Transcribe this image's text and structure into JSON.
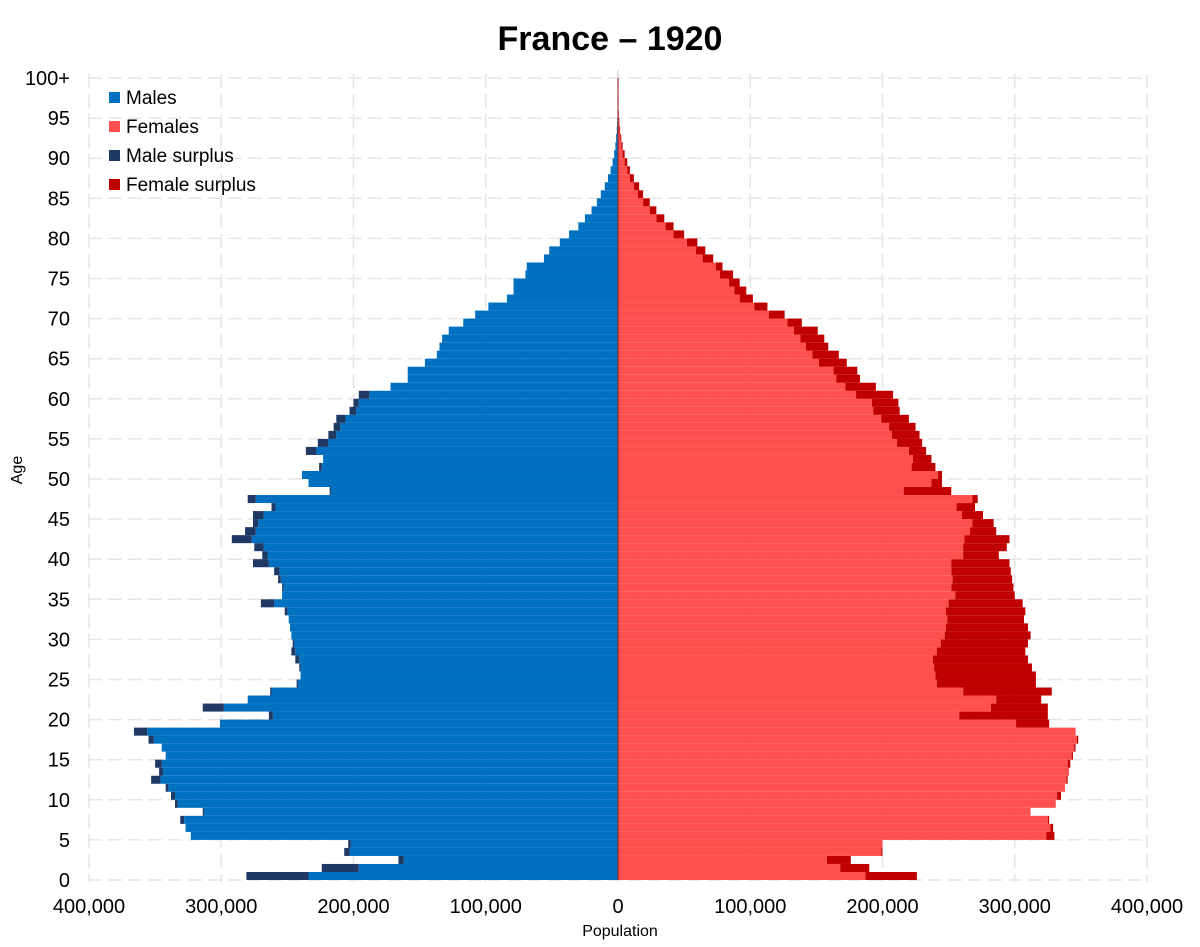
{
  "chart_data": {
    "type": "bar",
    "orientation": "horizontal",
    "subtype": "population-pyramid",
    "title": "France – 1920",
    "xlabel": "Population",
    "ylabel": "Age",
    "xlim": [
      -400000,
      400000
    ],
    "x_ticks": [
      -400000,
      -300000,
      -200000,
      -100000,
      0,
      100000,
      200000,
      300000,
      400000
    ],
    "x_tick_labels": [
      "400,000",
      "300,000",
      "200,000",
      "100,000",
      "0",
      "100,000",
      "200,000",
      "300,000",
      "400,000"
    ],
    "ylim": [
      0,
      100
    ],
    "y_ticks": [
      0,
      5,
      10,
      15,
      20,
      25,
      30,
      35,
      40,
      45,
      50,
      55,
      60,
      65,
      70,
      75,
      80,
      85,
      90,
      95,
      100
    ],
    "y_tick_labels": [
      "0",
      "5",
      "10",
      "15",
      "20",
      "25",
      "30",
      "35",
      "40",
      "45",
      "50",
      "55",
      "60",
      "65",
      "70",
      "75",
      "80",
      "85",
      "90",
      "95",
      "100+"
    ],
    "grid": true,
    "legend_position": "top-left",
    "legend": [
      {
        "name": "Males",
        "color": "#0070c0"
      },
      {
        "name": "Females",
        "color": "#ff5050"
      },
      {
        "name": "Male surplus",
        "color": "#1f3864"
      },
      {
        "name": "Female surplus",
        "color": "#c00000"
      }
    ],
    "ages": [
      0,
      1,
      2,
      3,
      4,
      5,
      6,
      7,
      8,
      9,
      10,
      11,
      12,
      13,
      14,
      15,
      16,
      17,
      18,
      19,
      20,
      21,
      22,
      23,
      24,
      25,
      26,
      27,
      28,
      29,
      30,
      31,
      32,
      33,
      34,
      35,
      36,
      37,
      38,
      39,
      40,
      41,
      42,
      43,
      44,
      45,
      46,
      47,
      48,
      49,
      50,
      51,
      52,
      53,
      54,
      55,
      56,
      57,
      58,
      59,
      60,
      61,
      62,
      63,
      64,
      65,
      66,
      67,
      68,
      69,
      70,
      71,
      72,
      73,
      74,
      75,
      76,
      77,
      78,
      79,
      80,
      81,
      82,
      83,
      84,
      85,
      86,
      87,
      88,
      89,
      90,
      91,
      92,
      93,
      94,
      95,
      96,
      97,
      98,
      99,
      100
    ],
    "series": [
      {
        "name": "Males",
        "color": "#0070c0",
        "values": [
          234000,
          196000,
          162000,
          203000,
          202000,
          323000,
          327000,
          328000,
          313000,
          333000,
          335000,
          340000,
          346000,
          344000,
          345000,
          342000,
          345000,
          351000,
          356000,
          301000,
          261000,
          298000,
          280000,
          262000,
          242000,
          240000,
          240000,
          241000,
          244000,
          245000,
          247000,
          248000,
          249000,
          250000,
          260000,
          254000,
          253000,
          255000,
          256000,
          264000,
          265000,
          268000,
          277000,
          274000,
          272000,
          268000,
          259000,
          274000,
          217000,
          234000,
          239000,
          224000,
          223000,
          228000,
          219000,
          213000,
          210000,
          206000,
          198000,
          196000,
          188000,
          172000,
          159000,
          159000,
          146000,
          137000,
          135000,
          133000,
          128000,
          117000,
          108000,
          98000,
          84000,
          79000,
          79000,
          70000,
          69000,
          56000,
          52000,
          44000,
          37000,
          30000,
          25000,
          20000,
          16000,
          13000,
          10000,
          7600,
          5600,
          4100,
          2900,
          2000,
          1400,
          900,
          600,
          400,
          250,
          160,
          100,
          60,
          100
        ]
      },
      {
        "name": "Females",
        "color": "#ff5050",
        "values": [
          187000,
          168000,
          158000,
          199000,
          200000,
          324000,
          327000,
          325000,
          312000,
          331000,
          332000,
          338000,
          339000,
          341000,
          340000,
          343000,
          345000,
          347000,
          346000,
          301000,
          258000,
          282000,
          286000,
          261000,
          241000,
          240000,
          239000,
          238000,
          241000,
          244000,
          247000,
          248000,
          249000,
          248000,
          250000,
          255000,
          252000,
          253000,
          252000,
          252000,
          261000,
          261000,
          262000,
          266000,
          268000,
          260000,
          256000,
          268000,
          216000,
          237000,
          242000,
          222000,
          223000,
          220000,
          211000,
          207000,
          205000,
          199000,
          193000,
          192000,
          180000,
          172000,
          165000,
          163000,
          152000,
          147000,
          142000,
          138000,
          133000,
          128000,
          114000,
          103000,
          92000,
          88000,
          84000,
          77000,
          74000,
          64000,
          59000,
          52000,
          42000,
          36000,
          29000,
          24000,
          19000,
          15000,
          12000,
          9000,
          7000,
          5000,
          3500,
          2500,
          1700,
          1100,
          700,
          450,
          280,
          170,
          110,
          70,
          120
        ]
      },
      {
        "name": "Male surplus",
        "color": "#1f3864",
        "values": [
          47000,
          28000,
          4000,
          4000,
          2000,
          0,
          0,
          3000,
          1000,
          2000,
          3000,
          2000,
          7000,
          3000,
          5000,
          0,
          0,
          4000,
          10000,
          0,
          3000,
          16000,
          0,
          1000,
          1000,
          0,
          1000,
          3000,
          3000,
          1000,
          0,
          0,
          0,
          2000,
          10000,
          0,
          1000,
          2000,
          4000,
          12000,
          4000,
          7000,
          15000,
          8000,
          4000,
          8000,
          3000,
          6000,
          1000,
          0,
          0,
          2000,
          0,
          8000,
          8000,
          6000,
          5000,
          7000,
          5000,
          4000,
          8000,
          0,
          0,
          0,
          0,
          0,
          0,
          0,
          0,
          0,
          0,
          0,
          0,
          0,
          0,
          0,
          0,
          0,
          0,
          0,
          0,
          0,
          0,
          0,
          0,
          0,
          0,
          0,
          0,
          0,
          0,
          0,
          0,
          0,
          0,
          0,
          0,
          0,
          0,
          0,
          0
        ]
      },
      {
        "name": "Female surplus",
        "color": "#c00000",
        "values": [
          0,
          0,
          0,
          0,
          0,
          1000,
          0,
          0,
          0,
          0,
          0,
          0,
          0,
          0,
          0,
          1000,
          0,
          0,
          0,
          0,
          0,
          0,
          6000,
          0,
          0,
          0,
          0,
          0,
          0,
          0,
          0,
          0,
          0,
          0,
          0,
          0,
          0,
          0,
          0,
          0,
          0,
          0,
          0,
          0,
          0,
          0,
          0,
          0,
          0,
          3000,
          3000,
          0,
          0,
          0,
          0,
          0,
          0,
          0,
          0,
          0,
          0,
          0,
          6000,
          4000,
          6000,
          10000,
          7000,
          5000,
          5000,
          11000,
          6000,
          5000,
          8000,
          9000,
          5000,
          7000,
          5000,
          8000,
          7000,
          8000,
          5000,
          6000,
          4000,
          4000,
          3000,
          2000,
          2000,
          1400,
          1400,
          900,
          600,
          500,
          300,
          200,
          100,
          50,
          30,
          10,
          10,
          10,
          20
        ]
      },
      {
        "name": "Male excess (left)",
        "values": [],
        "note_hidden": true
      }
    ],
    "males_total_side": [
      234000,
      196000,
      162000,
      203000,
      202000,
      323000,
      327000,
      328000,
      313000,
      333000,
      335000,
      340000,
      346000,
      344000,
      345000,
      342000,
      345000,
      351000,
      356000,
      301000,
      261000,
      298000,
      280000,
      262000,
      242000,
      240000,
      240000,
      241000,
      244000,
      245000,
      247000,
      248000,
      249000,
      250000,
      260000,
      254000,
      253000,
      255000,
      256000,
      264000,
      265000,
      268000,
      277000,
      274000,
      272000,
      268000,
      259000,
      274000,
      217000,
      234000,
      239000,
      224000,
      223000,
      228000,
      219000,
      213000,
      210000,
      206000,
      198000,
      196000,
      188000,
      172000,
      159000,
      159000,
      146000,
      137000,
      135000,
      133000,
      128000,
      117000,
      108000,
      98000,
      84000,
      79000,
      79000,
      70000,
      69000,
      56000,
      52000,
      44000,
      37000,
      30000,
      25000,
      20000,
      16000,
      13000,
      10000,
      7600,
      5600,
      4100,
      2900,
      2000,
      1400,
      900,
      600,
      400,
      250,
      160,
      100,
      60,
      100
    ],
    "females_total_side": [
      226000,
      190000,
      176000,
      200000,
      200000,
      330000,
      329000,
      326000,
      312000,
      331000,
      335000,
      338000,
      340000,
      341000,
      342000,
      344000,
      346000,
      348000,
      337000,
      326000,
      325000,
      325000,
      320000,
      328000,
      316000,
      316000,
      313000,
      310000,
      308000,
      310000,
      312000,
      310000,
      307000,
      308000,
      306000,
      300000,
      299000,
      298000,
      297000,
      296000,
      288000,
      294000,
      296000,
      286000,
      284000,
      276000,
      270000,
      272000,
      252000,
      245000,
      242000,
      240000,
      237000,
      233000,
      230000,
      228000,
      225000,
      220000,
      213000,
      212000,
      208000,
      195000,
      183000,
      181000,
      173000,
      167000,
      159000,
      156000,
      151000,
      139000,
      126000,
      113000,
      102000,
      97000,
      92000,
      87000,
      79000,
      72000,
      64000,
      59000,
      50000,
      42000,
      35000,
      29000,
      24000,
      19000,
      16000,
      12000,
      9000,
      7000,
      5000,
      3500,
      2500,
      1600,
      1000,
      600,
      350,
      200,
      130,
      80,
      140
    ]
  }
}
